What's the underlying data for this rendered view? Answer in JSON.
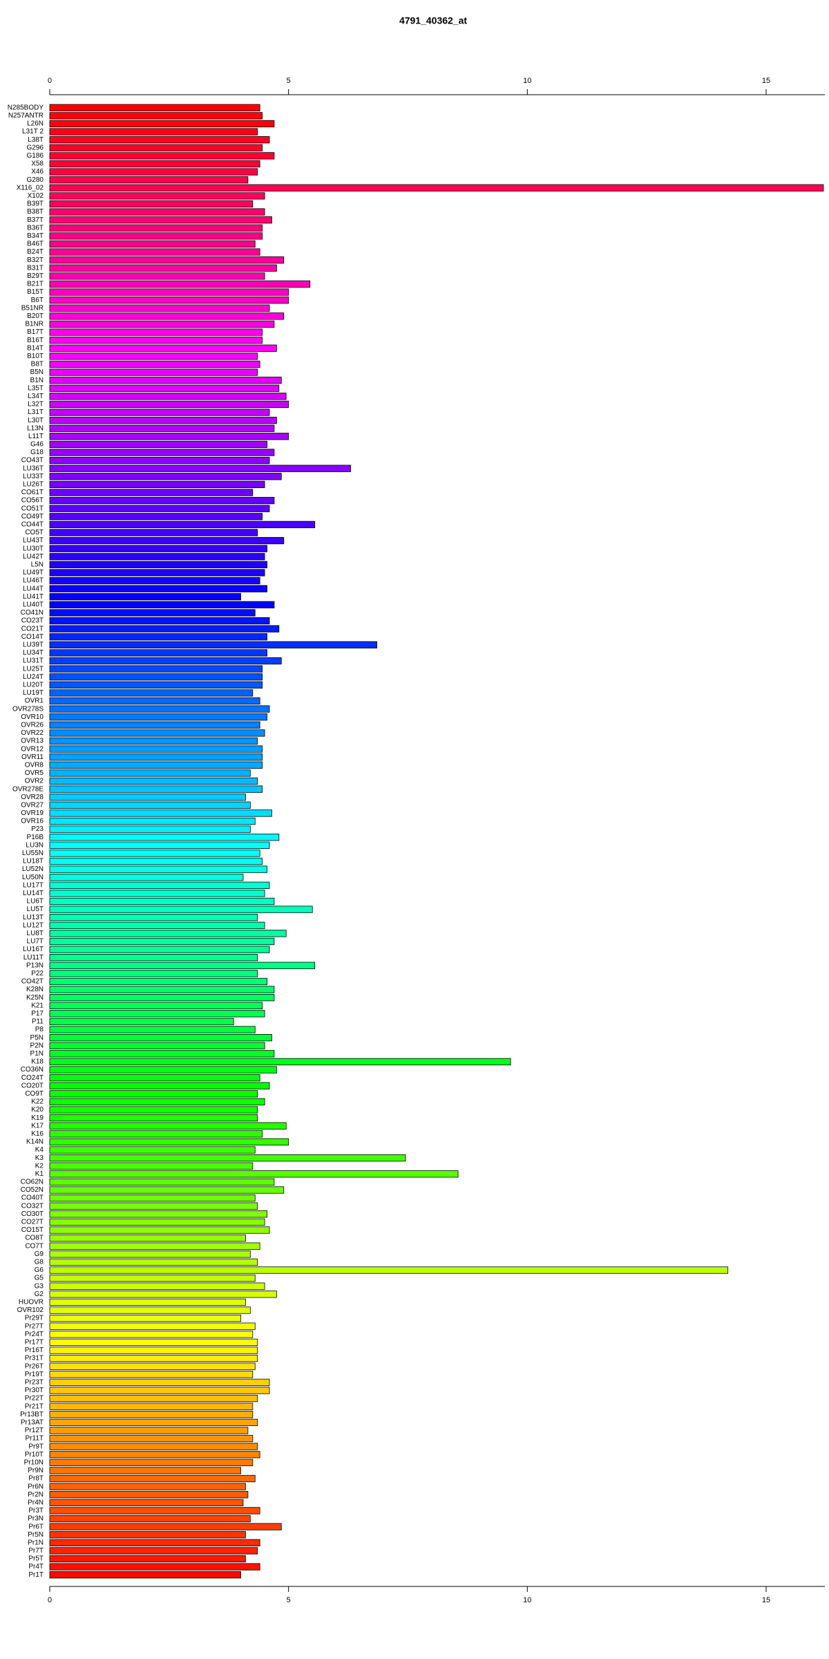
{
  "chart_data": {
    "type": "bar",
    "orientation": "horizontal",
    "title": "4791_40362_at",
    "categories": [
      "N285BODY",
      "N257ANTR",
      "L26N",
      "L31T 2",
      "L38T",
      "G296",
      "G186",
      "X58",
      "X46",
      "G280",
      "X116_02",
      "X102",
      "B39T",
      "B38T",
      "B37T",
      "B36T",
      "B34T",
      "B46T",
      "B24T",
      "B32T",
      "B31T",
      "B29T",
      "B21T",
      "B15T",
      "B6T",
      "B51NR",
      "B20T",
      "B1NR",
      "B17T",
      "B16T",
      "B14T",
      "B10T",
      "B8T",
      "B5N",
      "B1N",
      "L35T",
      "L34T",
      "L32T",
      "L31T",
      "L30T",
      "L13N",
      "L11T",
      "G46",
      "G18",
      "CO43T",
      "LU36T",
      "LU33T",
      "LU26T",
      "CO61T",
      "CO56T",
      "CO51T",
      "CO49T",
      "CO44T",
      "CO5T",
      "LU43T",
      "LU30T",
      "LU42T",
      "L5N",
      "LU49T",
      "LU46T",
      "LU44T",
      "LU41T",
      "LU40T",
      "CO41N",
      "CO23T",
      "CO21T",
      "CO14T",
      "LU39T",
      "LU34T",
      "LU31T",
      "LU25T",
      "LU24T",
      "LU20T",
      "LU19T",
      "OVR1",
      "OVR278S",
      "OVR10",
      "OVR26",
      "OVR22",
      "OVR13",
      "OVR12",
      "OVR11",
      "OVR8",
      "OVR5",
      "OVR2",
      "OVR278E",
      "OVR28",
      "OVR27",
      "OVR19",
      "OVR16",
      "P23",
      "P16B",
      "LU3N",
      "LU55N",
      "LU18T",
      "LU52N",
      "LU50N",
      "LU17T",
      "LU14T",
      "LU6T",
      "LU5T",
      "LU13T",
      "LU12T",
      "LU8T",
      "LU7T",
      "LU16T",
      "LU11T",
      "P13N",
      "P22",
      "CO42T",
      "K28N",
      "K25N",
      "K21",
      "P17",
      "P11",
      "P8",
      "P5N",
      "P2N",
      "P1N",
      "K18",
      "CO36N",
      "CO24T",
      "CO20T",
      "CO9T",
      "K22",
      "K20",
      "K19",
      "K17",
      "K16",
      "K14N",
      "K4",
      "K3",
      "K2",
      "K1",
      "CO62N",
      "CO52N",
      "CO40T",
      "CO32T",
      "CO30T",
      "CO27T",
      "CO15T",
      "CO8T",
      "CO7T",
      "G9",
      "G8",
      "G6",
      "G5",
      "G3",
      "G2",
      "HUOVR",
      "OVR102",
      "Pr29T",
      "Pr27T",
      "Pr24T",
      "Pr17T",
      "Pr16T",
      "Pr31T",
      "Pr26T",
      "Pr19T",
      "Pr23T",
      "Pr30T",
      "Pr22T",
      "Pr21T",
      "Pr13BT",
      "Pr13AT",
      "Pr12T",
      "Pr11T",
      "Pr9T",
      "Pr10T",
      "Pr10N",
      "Pr9N",
      "Pr8T",
      "Pr6N",
      "Pr2N",
      "Pr4N",
      "Pr3T",
      "Pr3N",
      "Pr6T",
      "Pr5N",
      "Pr1N",
      "Pr7T",
      "Pr5T",
      "Pr4T",
      "Pr1T"
    ],
    "values": [
      4.4,
      4.45,
      4.7,
      4.35,
      4.6,
      4.45,
      4.7,
      4.4,
      4.35,
      4.15,
      16.2,
      4.5,
      4.25,
      4.5,
      4.65,
      4.45,
      4.45,
      4.3,
      4.4,
      4.9,
      4.75,
      4.5,
      5.45,
      5.0,
      5.0,
      4.6,
      4.9,
      4.7,
      4.45,
      4.45,
      4.75,
      4.35,
      4.4,
      4.35,
      4.85,
      4.8,
      4.95,
      5.0,
      4.6,
      4.75,
      4.7,
      5.0,
      4.55,
      4.7,
      4.6,
      6.3,
      4.85,
      4.5,
      4.25,
      4.7,
      4.6,
      4.45,
      5.55,
      4.35,
      4.9,
      4.55,
      4.5,
      4.55,
      4.5,
      4.4,
      4.55,
      4.0,
      4.7,
      4.3,
      4.6,
      4.8,
      4.55,
      6.85,
      4.55,
      4.85,
      4.45,
      4.45,
      4.45,
      4.25,
      4.4,
      4.6,
      4.55,
      4.4,
      4.5,
      4.35,
      4.45,
      4.45,
      4.45,
      4.2,
      4.35,
      4.45,
      4.1,
      4.2,
      4.65,
      4.3,
      4.2,
      4.8,
      4.6,
      4.4,
      4.45,
      4.55,
      4.05,
      4.6,
      4.5,
      4.7,
      5.5,
      4.35,
      4.5,
      4.95,
      4.7,
      4.6,
      4.35,
      5.55,
      4.35,
      4.55,
      4.7,
      4.7,
      4.45,
      4.5,
      3.85,
      4.3,
      4.65,
      4.5,
      4.7,
      9.65,
      4.75,
      4.4,
      4.6,
      4.35,
      4.5,
      4.35,
      4.35,
      4.95,
      4.45,
      5.0,
      4.3,
      7.45,
      4.25,
      8.55,
      4.7,
      4.9,
      4.3,
      4.35,
      4.55,
      4.5,
      4.6,
      4.1,
      4.4,
      4.2,
      4.35,
      14.2,
      4.3,
      4.5,
      4.75,
      4.1,
      4.2,
      4.0,
      4.3,
      4.25,
      4.35,
      4.35,
      4.35,
      4.3,
      4.25,
      4.6,
      4.6,
      4.35,
      4.25,
      4.25,
      4.35,
      4.15,
      4.25,
      4.35,
      4.4,
      4.25,
      4.0,
      4.3,
      4.1,
      4.15,
      4.05,
      4.4,
      4.2,
      4.85,
      4.1,
      4.4,
      4.35,
      4.1,
      4.4,
      4.0
    ],
    "colors": [
      "hsl(0,100%,50%)",
      "hsl(358,100%,50%)",
      "hsl(356,100%,50%)",
      "hsl(354,100%,50%)",
      "hsl(352,100%,50%)",
      "hsl(350,100%,50%)",
      "hsl(348,100%,50%)",
      "hsl(346,100%,50%)",
      "hsl(344,100%,50%)",
      "hsl(342,100%,50%)",
      "hsl(340,100%,50%)",
      "hsl(338,100%,50%)",
      "hsl(337,100%,50%)",
      "hsl(335,100%,50%)",
      "hsl(333,100%,50%)",
      "hsl(331,100%,50%)",
      "hsl(329,100%,50%)",
      "hsl(327,100%,50%)",
      "hsl(325,100%,50%)",
      "hsl(323,100%,50%)",
      "hsl(321,100%,50%)",
      "hsl(319,100%,50%)",
      "hsl(317,100%,50%)",
      "hsl(315,100%,50%)",
      "hsl(313,100%,50%)",
      "hsl(311,100%,50%)",
      "hsl(309,100%,50%)",
      "hsl(307,100%,50%)",
      "hsl(305,100%,50%)",
      "hsl(303,100%,50%)",
      "hsl(301,100%,50%)",
      "hsl(299,100%,50%)",
      "hsl(297,100%,50%)",
      "hsl(295,100%,50%)",
      "hsl(293,100%,50%)",
      "hsl(292,100%,50%)",
      "hsl(290,100%,50%)",
      "hsl(288,100%,50%)",
      "hsl(286,100%,50%)",
      "hsl(284,100%,50%)",
      "hsl(282,100%,50%)",
      "hsl(280,100%,50%)",
      "hsl(278,100%,50%)",
      "hsl(276,100%,50%)",
      "hsl(274,100%,50%)",
      "hsl(272,100%,50%)",
      "hsl(270,100%,50%)",
      "hsl(268,100%,50%)",
      "hsl(266,100%,50%)",
      "hsl(264,100%,50%)",
      "hsl(262,100%,50%)",
      "hsl(260,100%,50%)",
      "hsl(258,100%,50%)",
      "hsl(256,100%,50%)",
      "hsl(254,100%,50%)",
      "hsl(252,100%,50%)",
      "hsl(250,100%,50%)",
      "hsl(248,100%,50%)",
      "hsl(247,100%,50%)",
      "hsl(245,100%,50%)",
      "hsl(243,100%,50%)",
      "hsl(241,100%,50%)",
      "hsl(239,100%,50%)",
      "hsl(237,100%,50%)",
      "hsl(235,100%,50%)",
      "hsl(233,100%,50%)",
      "hsl(231,100%,50%)",
      "hsl(229,100%,50%)",
      "hsl(227,100%,50%)",
      "hsl(225,100%,50%)",
      "hsl(223,100%,50%)",
      "hsl(221,100%,50%)",
      "hsl(219,100%,50%)",
      "hsl(217,100%,50%)",
      "hsl(215,100%,50%)",
      "hsl(213,100%,50%)",
      "hsl(211,100%,50%)",
      "hsl(209,100%,50%)",
      "hsl(207,100%,50%)",
      "hsl(205,100%,50%)",
      "hsl(203,100%,50%)",
      "hsl(202,100%,50%)",
      "hsl(200,100%,50%)",
      "hsl(198,100%,50%)",
      "hsl(196,100%,50%)",
      "hsl(194,100%,50%)",
      "hsl(192,100%,50%)",
      "hsl(190,100%,50%)",
      "hsl(188,100%,50%)",
      "hsl(186,100%,50%)",
      "hsl(184,100%,50%)",
      "hsl(182,100%,50%)",
      "hsl(180,100%,50%)",
      "hsl(178,100%,50%)",
      "hsl(176,100%,50%)",
      "hsl(174,100%,50%)",
      "hsl(172,100%,50%)",
      "hsl(170,100%,50%)",
      "hsl(168,100%,50%)",
      "hsl(166,100%,50%)",
      "hsl(164,100%,50%)",
      "hsl(162,100%,50%)",
      "hsl(160,100%,50%)",
      "hsl(158,100%,50%)",
      "hsl(157,100%,50%)",
      "hsl(155,100%,50%)",
      "hsl(153,100%,50%)",
      "hsl(151,100%,50%)",
      "hsl(149,100%,50%)",
      "hsl(147,100%,50%)",
      "hsl(145,100%,50%)",
      "hsl(143,100%,50%)",
      "hsl(141,100%,50%)",
      "hsl(139,100%,50%)",
      "hsl(137,100%,50%)",
      "hsl(135,100%,50%)",
      "hsl(133,100%,50%)",
      "hsl(131,100%,50%)",
      "hsl(129,100%,50%)",
      "hsl(127,100%,50%)",
      "hsl(125,100%,50%)",
      "hsl(123,100%,50%)",
      "hsl(121,100%,50%)",
      "hsl(119,100%,50%)",
      "hsl(117,100%,50%)",
      "hsl(115,100%,50%)",
      "hsl(113,100%,50%)",
      "hsl(112,100%,50%)",
      "hsl(110,100%,50%)",
      "hsl(108,100%,50%)",
      "hsl(106,100%,50%)",
      "hsl(104,100%,50%)",
      "hsl(102,100%,50%)",
      "hsl(100,100%,50%)",
      "hsl(98,100%,50%)",
      "hsl(96,100%,50%)",
      "hsl(94,100%,50%)",
      "hsl(92,100%,50%)",
      "hsl(90,100%,50%)",
      "hsl(88,100%,50%)",
      "hsl(86,100%,50%)",
      "hsl(84,100%,50%)",
      "hsl(82,100%,50%)",
      "hsl(80,100%,50%)",
      "hsl(78,100%,50%)",
      "hsl(76,100%,50%)",
      "hsl(74,100%,50%)",
      "hsl(72,100%,50%)",
      "hsl(70,100%,50%)",
      "hsl(68,100%,50%)",
      "hsl(67,100%,50%)",
      "hsl(65,100%,50%)",
      "hsl(63,100%,50%)",
      "hsl(61,100%,50%)",
      "hsl(59,100%,50%)",
      "hsl(57,100%,50%)",
      "hsl(55,100%,50%)",
      "hsl(53,100%,50%)",
      "hsl(51,100%,50%)",
      "hsl(49,100%,50%)",
      "hsl(47,100%,50%)",
      "hsl(45,100%,50%)",
      "hsl(43,100%,50%)",
      "hsl(41,100%,50%)",
      "hsl(39,100%,50%)",
      "hsl(37,100%,50%)",
      "hsl(35,100%,50%)",
      "hsl(33,100%,50%)",
      "hsl(31,100%,50%)",
      "hsl(29,100%,50%)",
      "hsl(27,100%,50%)",
      "hsl(25,100%,50%)",
      "hsl(23,100%,50%)",
      "hsl(22,100%,50%)",
      "hsl(20,100%,50%)",
      "hsl(18,100%,50%)",
      "hsl(16,100%,50%)",
      "hsl(14,100%,50%)",
      "hsl(12,100%,50%)",
      "hsl(10,100%,50%)",
      "hsl(8,100%,50%)",
      "hsl(6,100%,50%)",
      "hsl(4,100%,50%)",
      "hsl(2,100%,50%)"
    ],
    "xlim": [
      0,
      16.23
    ],
    "xticks": [
      0,
      5,
      10,
      15
    ]
  }
}
